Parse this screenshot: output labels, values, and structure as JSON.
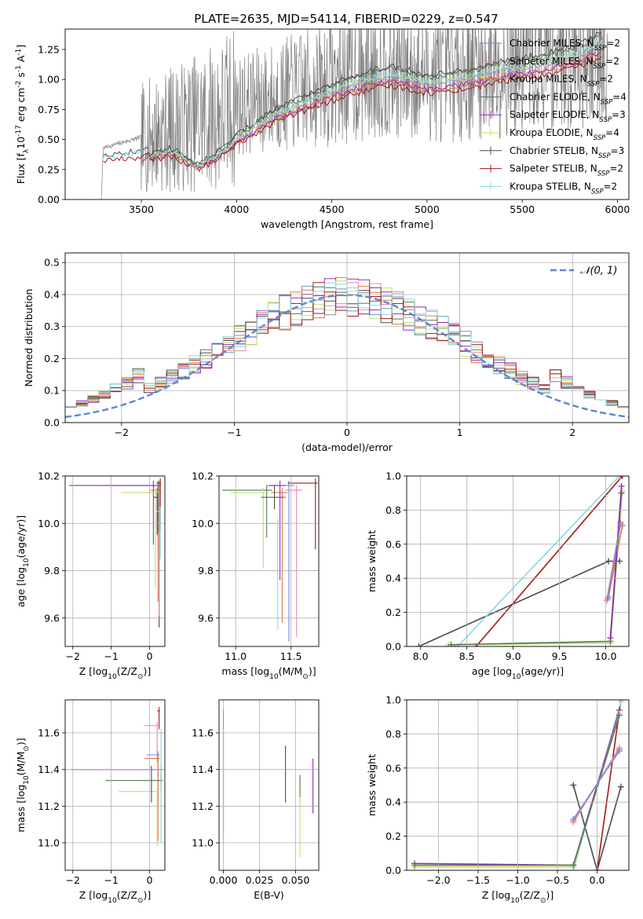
{
  "figure_title": "PLATE=2635, MJD=54114, FIBERID=0229, z=0.547",
  "models": [
    {
      "name": "Chabrier MILES, N$_{SSP}$=2",
      "label": "Chabrier MILES, N",
      "sub": "SSP",
      "suffix": "=2",
      "color": "#6f8fd8"
    },
    {
      "name": "Salpeter MILES, N$_{SSP}$=2",
      "label": "Salpeter MILES, N",
      "sub": "SSP",
      "suffix": "=2",
      "color": "#e88aa8"
    },
    {
      "name": "Kroupa MILES, N$_{SSP}$=2",
      "label": "Kroupa MILES, N",
      "sub": "SSP",
      "suffix": "=2",
      "color": "#e07a3a"
    },
    {
      "name": "Chabrier ELODIE, N$_{SSP}$=4",
      "label": "Chabrier ELODIE, N",
      "sub": "SSP",
      "suffix": "=4",
      "color": "#4f7a4f"
    },
    {
      "name": "Salpeter ELODIE, N$_{SSP}$=3",
      "label": "Salpeter ELODIE, N",
      "sub": "SSP",
      "suffix": "=3",
      "color": "#9a28b8"
    },
    {
      "name": "Kroupa ELODIE, N$_{SSP}$=4",
      "label": "Kroupa ELODIE, N",
      "sub": "SSP",
      "suffix": "=4",
      "color": "#c4e06a"
    },
    {
      "name": "Chabrier STELIB, N$_{SSP}$=3",
      "label": "Chabrier STELIB, N",
      "sub": "SSP",
      "suffix": "=3",
      "color": "#4a4a4a"
    },
    {
      "name": "Salpeter STELIB, N$_{SSP}$=2",
      "label": "Salpeter STELIB, N",
      "sub": "SSP",
      "suffix": "=2",
      "color": "#a31818"
    },
    {
      "name": "Kroupa STELIB, N$_{SSP}$=2",
      "label": "Kroupa STELIB, N",
      "sub": "SSP",
      "suffix": "=2",
      "color": "#8cd8e0"
    }
  ],
  "chart_data": [
    {
      "id": "spectrum",
      "type": "line",
      "xlabel": "wavelength [Angstrom, rest frame]",
      "ylabel": "Flux [f$_\\lambda$10$^{-17}$ erg cm$^{-2}$ s$^{-1}$ A$^{-1}$]",
      "xlim": [
        3100,
        6060
      ],
      "ylim": [
        0,
        1.42
      ],
      "xticks": [
        3500,
        4000,
        4500,
        5000,
        5500,
        6000
      ],
      "yticks": [
        0.0,
        0.25,
        0.5,
        0.75,
        1.0,
        1.25
      ],
      "data_color": "#808080",
      "data_anchor": {
        "x": [
          3200,
          3290,
          3300,
          3500,
          3700,
          3900,
          4000,
          4200,
          4500,
          4800,
          5000,
          5300,
          5600,
          5900,
          5950
        ],
        "y": [
          0.0,
          0.0,
          0.43,
          0.52,
          0.6,
          0.7,
          0.78,
          0.85,
          0.98,
          1.1,
          1.02,
          1.1,
          1.2,
          1.3,
          1.34
        ]
      },
      "model_anchor": {
        "x": [
          3300,
          3500,
          3650,
          3800,
          3950,
          4000,
          4200,
          4400,
          4600,
          4800,
          4850,
          5000,
          5200,
          5400,
          5600,
          5800,
          5900
        ],
        "y": [
          0.3,
          0.33,
          0.4,
          0.27,
          0.42,
          0.5,
          0.7,
          0.83,
          0.95,
          1.03,
          1.02,
          0.96,
          1.0,
          1.07,
          1.12,
          1.2,
          1.28
        ]
      },
      "legend_loc": "upper right"
    },
    {
      "id": "residuals",
      "type": "histogram",
      "xlabel": "(data-model)/error",
      "ylabel": "Normed distribution",
      "xlim": [
        -2.5,
        2.5
      ],
      "ylim": [
        0,
        0.53
      ],
      "xticks": [
        -2,
        -1,
        0,
        1,
        2
      ],
      "yticks": [
        0.0,
        0.1,
        0.2,
        0.3,
        0.4,
        0.5
      ],
      "bin_width": 0.1,
      "legend": [
        "$\\mathcal{N}(0,1)$"
      ],
      "legend_text": "𝒩(0, 1)",
      "gaussian_color": "#5b86d3",
      "legend_loc": "upper right"
    },
    {
      "id": "age-vs-Z",
      "type": "errorbar",
      "xlabel": "Z [log$_{10}$(Z/Z$_\\odot$)]",
      "ylabel": "age  [log$_{10}$(age/yr)]",
      "xlim": [
        -2.2,
        0.4
      ],
      "ylim": [
        9.48,
        10.2
      ],
      "xticks": [
        -2,
        -1,
        0
      ],
      "yticks": [
        9.6,
        9.8,
        10.0,
        10.2
      ],
      "points": [
        {
          "x": 0.25,
          "y": 10.16,
          "xerr": [
            0.1,
            0.05
          ],
          "yerr": [
            0.6,
            0.02
          ],
          "c": 6
        },
        {
          "x": 0.2,
          "y": 10.13,
          "xerr": [
            0.3,
            0.1
          ],
          "yerr": [
            0.14,
            0.02
          ],
          "c": 0
        },
        {
          "x": 0.25,
          "y": 10.16,
          "xerr": [
            0.2,
            0.05
          ],
          "yerr": [
            0.55,
            0.02
          ],
          "c": 1
        },
        {
          "x": 0.22,
          "y": 10.14,
          "xerr": [
            0.2,
            0.05
          ],
          "yerr": [
            0.47,
            0.02
          ],
          "c": 2
        },
        {
          "x": 0.22,
          "y": 10.16,
          "xerr": [
            1.5,
            0.05
          ],
          "yerr": [
            0.2,
            0.02
          ],
          "c": 3
        },
        {
          "x": 0.1,
          "y": 10.16,
          "xerr": [
            2.2,
            0.05
          ],
          "yerr": [
            0.25,
            0.02
          ],
          "c": 4
        },
        {
          "x": 0.15,
          "y": 10.13,
          "xerr": [
            0.9,
            0.1
          ],
          "yerr": [
            0.4,
            0.02
          ],
          "c": 5
        },
        {
          "x": 0.2,
          "y": 10.11,
          "xerr": [
            0.1,
            0.02
          ],
          "yerr": [
            0.16,
            0.02
          ],
          "c": 6
        },
        {
          "x": 0.28,
          "y": 10.17,
          "xerr": [
            0.1,
            0.02
          ],
          "yerr": [
            0.2,
            0.02
          ],
          "c": 7
        },
        {
          "x": 0.28,
          "y": 10.05,
          "xerr": [
            0.1,
            0.02
          ],
          "yerr": [
            0.2,
            0.02
          ],
          "c": 8
        }
      ]
    },
    {
      "id": "age-vs-mass",
      "type": "errorbar",
      "xlabel": "mass [log$_{10}$(M/M$_\\odot$)]",
      "ylabel": "",
      "xlim": [
        10.85,
        11.75
      ],
      "ylim": [
        9.48,
        10.2
      ],
      "xticks": [
        11.0,
        11.5
      ],
      "yticks": [
        9.6,
        9.8,
        10.0,
        10.2
      ],
      "points": [
        {
          "x": 11.48,
          "y": 10.16,
          "xerr": [
            0.2,
            0.05
          ],
          "yerr": [
            0.66,
            0.02
          ],
          "c": 0
        },
        {
          "x": 11.55,
          "y": 10.14,
          "xerr": [
            0.1,
            0.05
          ],
          "yerr": [
            0.62,
            0.02
          ],
          "c": 1
        },
        {
          "x": 11.42,
          "y": 10.13,
          "xerr": [
            0.1,
            0.05
          ],
          "yerr": [
            0.55,
            0.02
          ],
          "c": 2
        },
        {
          "x": 11.28,
          "y": 10.14,
          "xerr": [
            0.4,
            0.05
          ],
          "yerr": [
            0.2,
            0.02
          ],
          "c": 3
        },
        {
          "x": 11.4,
          "y": 10.16,
          "xerr": [
            0.1,
            0.05
          ],
          "yerr": [
            0.4,
            0.02
          ],
          "c": 4
        },
        {
          "x": 11.25,
          "y": 10.13,
          "xerr": [
            0.3,
            0.05
          ],
          "yerr": [
            0.32,
            0.02
          ],
          "c": 5
        },
        {
          "x": 11.35,
          "y": 10.11,
          "xerr": [
            0.12,
            0.1
          ],
          "yerr": [
            0.05,
            0.05
          ],
          "c": 6
        },
        {
          "x": 11.72,
          "y": 10.17,
          "xerr": [
            0.25,
            0.02
          ],
          "yerr": [
            0.28,
            0.02
          ],
          "c": 7
        },
        {
          "x": 11.38,
          "y": 10.0,
          "xerr": [
            0.1,
            0.1
          ],
          "yerr": [
            0.45,
            0.02
          ],
          "c": 8
        }
      ]
    },
    {
      "id": "massweight-vs-age",
      "type": "line",
      "xlabel": "age  [log$_{10}$(age/yr)]",
      "ylabel": "mass weight",
      "xlim": [
        7.85,
        10.25
      ],
      "ylim": [
        0,
        1.0
      ],
      "xticks": [
        8.0,
        8.5,
        9.0,
        9.5,
        10.0
      ],
      "yticks": [
        0.0,
        0.2,
        0.4,
        0.6,
        0.8,
        1.0
      ],
      "series": [
        {
          "c": 6,
          "x": [
            7.98,
            10.03,
            10.15
          ],
          "y": [
            0.0,
            0.5,
            0.5
          ]
        },
        {
          "c": 7,
          "x": [
            8.6,
            10.18
          ],
          "y": [
            0.0,
            1.0
          ]
        },
        {
          "c": 8,
          "x": [
            8.3,
            8.4,
            10.15
          ],
          "y": [
            0.0,
            0.0,
            1.0
          ]
        },
        {
          "c": 5,
          "x": [
            8.3,
            10.05,
            10.18
          ],
          "y": [
            0.01,
            0.02,
            0.91
          ]
        },
        {
          "c": 3,
          "x": [
            8.33,
            10.05,
            10.17
          ],
          "y": [
            0.01,
            0.03,
            0.9
          ]
        },
        {
          "c": 2,
          "x": [
            10.03,
            10.18
          ],
          "y": [
            0.29,
            0.71
          ]
        },
        {
          "c": 1,
          "x": [
            10.01,
            10.16
          ],
          "y": [
            0.27,
            0.73
          ]
        },
        {
          "c": 4,
          "x": [
            10.05,
            10.17
          ],
          "y": [
            0.05,
            0.94
          ]
        },
        {
          "c": 0,
          "x": [
            10.02,
            10.16
          ],
          "y": [
            0.28,
            0.72
          ]
        }
      ]
    },
    {
      "id": "mass-vs-Z",
      "type": "errorbar",
      "xlabel": "Z [log$_{10}$(Z/Z$_\\odot$)]",
      "ylabel": "mass [log$_{10}$(M/M$_\\odot$)]",
      "xlim": [
        -2.2,
        0.4
      ],
      "ylim": [
        10.85,
        11.78
      ],
      "xticks": [
        -2,
        -1,
        0
      ],
      "yticks": [
        11.0,
        11.2,
        11.4,
        11.6
      ],
      "points": [
        {
          "x": 0.25,
          "y": 11.72,
          "xerr": [
            0.05,
            0.02
          ],
          "yerr": [
            0.1,
            0.02
          ],
          "c": 7
        },
        {
          "x": 0.2,
          "y": 11.64,
          "xerr": [
            0.35,
            0.05
          ],
          "yerr": [
            0.2,
            0.02
          ],
          "c": 1
        },
        {
          "x": 0.22,
          "y": 11.48,
          "xerr": [
            0.3,
            0.05
          ],
          "yerr": [
            0.3,
            0.02
          ],
          "c": 0
        },
        {
          "x": 0.22,
          "y": 11.46,
          "xerr": [
            0.35,
            0.05
          ],
          "yerr": [
            0.45,
            0.02
          ],
          "c": 2
        },
        {
          "x": 0.3,
          "y": 11.4,
          "xerr": [
            2.35,
            0.05
          ],
          "yerr": [
            0.06,
            0.02
          ],
          "c": 4
        },
        {
          "x": 0.3,
          "y": 11.34,
          "xerr": [
            1.45,
            0.05
          ],
          "yerr": [
            0.06,
            0.02
          ],
          "c": 3
        },
        {
          "x": 0.2,
          "y": 11.28,
          "xerr": [
            1.0,
            0.05
          ],
          "yerr": [
            0.3,
            0.02
          ],
          "c": 5
        },
        {
          "x": 0.05,
          "y": 11.4,
          "xerr": [
            0.05,
            0.05
          ],
          "yerr": [
            0.18,
            0.02
          ],
          "c": 6
        },
        {
          "x": 0.3,
          "y": 11.6,
          "xerr": [
            0.05,
            0.05
          ],
          "yerr": [
            0.6,
            0.02
          ],
          "c": 8
        }
      ]
    },
    {
      "id": "mass-vs-ebv",
      "type": "errorbar",
      "xlabel": "E(B-V)",
      "ylabel": "",
      "xlim": [
        -0.003,
        0.066
      ],
      "ylim": [
        10.85,
        11.78
      ],
      "xticks": [
        0.0,
        0.025,
        0.05
      ],
      "yticks": [
        11.0,
        11.2,
        11.4,
        11.6
      ],
      "points": [
        {
          "x": 0.0,
          "y": 11.55,
          "xerr": [
            0,
            0
          ],
          "yerr": [
            0.5,
            0.18
          ],
          "c": 7
        },
        {
          "x": 0.0,
          "y": 11.4,
          "xerr": [
            0,
            0
          ],
          "yerr": [
            0.4,
            0.2
          ],
          "c": 0
        },
        {
          "x": 0.0,
          "y": 11.35,
          "xerr": [
            0,
            0
          ],
          "yerr": [
            0.35,
            0.27
          ],
          "c": 8
        },
        {
          "x": 0.043,
          "y": 11.38,
          "xerr": [
            0,
            0
          ],
          "yerr": [
            0.16,
            0.15
          ],
          "c": 6
        },
        {
          "x": 0.053,
          "y": 11.2,
          "xerr": [
            0,
            0
          ],
          "yerr": [
            0.28,
            0.17
          ],
          "c": 5
        },
        {
          "x": 0.053,
          "y": 11.3,
          "xerr": [
            0,
            0
          ],
          "yerr": [
            0.05,
            0.07
          ],
          "c": 3
        },
        {
          "x": 0.062,
          "y": 11.3,
          "xerr": [
            0,
            0
          ],
          "yerr": [
            0.14,
            0.16
          ],
          "c": 4
        }
      ]
    },
    {
      "id": "massweight-vs-Z",
      "type": "line",
      "xlabel": "Z [log$_{10}$(Z/Z$_\\odot$)]",
      "ylabel": "mass weight",
      "xlim": [
        -2.4,
        0.4
      ],
      "ylim": [
        0,
        1.0
      ],
      "xticks": [
        -2.0,
        -1.5,
        -1.0,
        -0.5,
        0.0
      ],
      "yticks": [
        0.0,
        0.2,
        0.4,
        0.6,
        0.8,
        1.0
      ],
      "series": [
        {
          "c": 6,
          "x": [
            -0.3,
            0.0,
            0.3
          ],
          "y": [
            0.5,
            0.0,
            0.49
          ]
        },
        {
          "c": 7,
          "x": [
            0.0,
            0.3
          ],
          "y": [
            0.0,
            1.0
          ]
        },
        {
          "c": 8,
          "x": [
            -0.3,
            0.3
          ],
          "y": [
            0.0,
            0.99
          ]
        },
        {
          "c": 4,
          "x": [
            -2.3,
            -0.3,
            0.28
          ],
          "y": [
            0.04,
            0.03,
            0.94
          ]
        },
        {
          "c": 5,
          "x": [
            -2.3,
            -0.3,
            0.28
          ],
          "y": [
            0.02,
            0.02,
            0.92
          ]
        },
        {
          "c": 3,
          "x": [
            -2.3,
            -0.3,
            0.28
          ],
          "y": [
            0.03,
            0.03,
            0.91
          ]
        },
        {
          "c": 2,
          "x": [
            -0.3,
            0.28
          ],
          "y": [
            0.29,
            0.71
          ]
        },
        {
          "c": 1,
          "x": [
            -0.3,
            0.28
          ],
          "y": [
            0.28,
            0.72
          ]
        },
        {
          "c": 0,
          "x": [
            -0.3,
            0.28
          ],
          "y": [
            0.3,
            0.7
          ]
        }
      ]
    }
  ]
}
